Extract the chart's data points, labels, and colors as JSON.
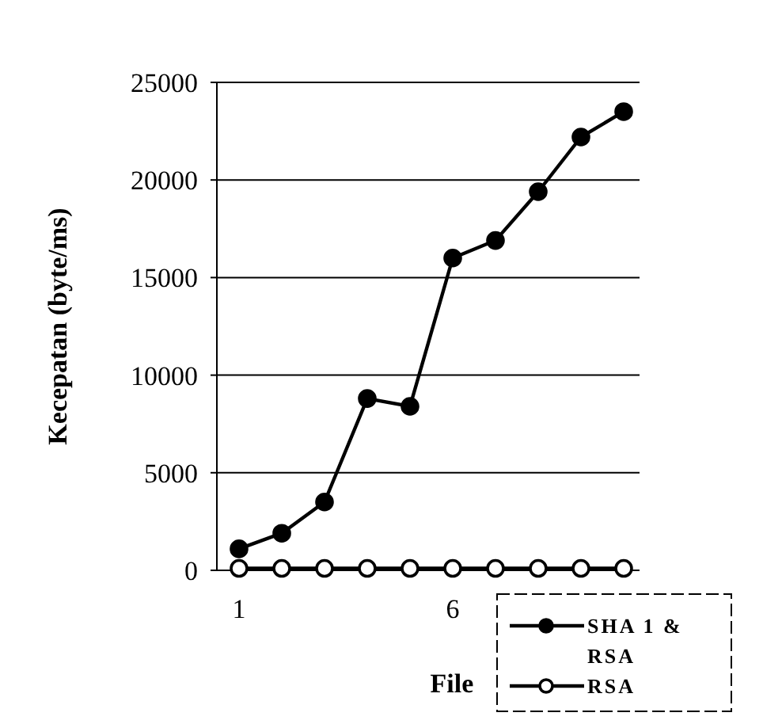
{
  "chart_data": {
    "type": "line",
    "xlabel": "File",
    "ylabel": "Kecepatan (byte/ms)",
    "categories": [
      "1",
      null,
      null,
      null,
      null,
      "6",
      null,
      null,
      null,
      null
    ],
    "ylim": [
      0,
      25000
    ],
    "yticks": [
      0,
      5000,
      10000,
      15000,
      20000,
      25000
    ],
    "grid": "y",
    "legend": "bottom right",
    "marker": "circle",
    "line_style": "solid",
    "series": [
      {
        "name": "SHA 1 & RSA",
        "color": "#000000",
        "values": [
          1100,
          1900,
          3500,
          8800,
          8400,
          16000,
          16900,
          19400,
          22200,
          23500
        ]
      },
      {
        "name": "RSA",
        "color": "#000000",
        "values": [
          100,
          100,
          100,
          100,
          100,
          100,
          100,
          100,
          100,
          100
        ]
      }
    ]
  }
}
